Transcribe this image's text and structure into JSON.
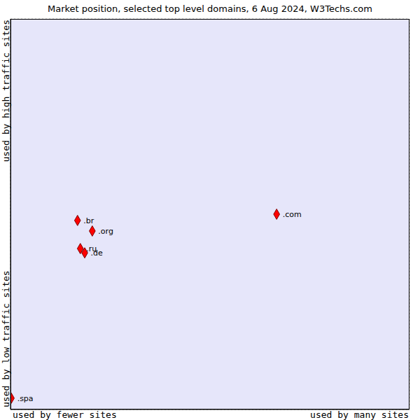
{
  "chart_data": {
    "type": "scatter",
    "title": "Market position, selected top level domains, 6 Aug 2024, W3Techs.com",
    "xlabel": [
      "used by fewer sites",
      "used by many sites"
    ],
    "ylabel": [
      "used by low traffic sites",
      "used by high traffic sites"
    ],
    "points": [
      {
        "name": ".br",
        "x": 1.68,
        "y": 4.84
      },
      {
        "name": ".org",
        "x": 2.05,
        "y": 4.57
      },
      {
        "name": ".ru",
        "x": 1.75,
        "y": 4.12
      },
      {
        "name": ".de",
        "x": 1.86,
        "y": 4.01
      },
      {
        "name": ".com",
        "x": 6.67,
        "y": 5.0
      },
      {
        "name": ".spa",
        "x": 0.02,
        "y": 0.29
      }
    ],
    "color": "#ff0000",
    "marker": "diamond",
    "xlim": [
      0,
      10
    ],
    "ylim": [
      0,
      10
    ],
    "xticks": [
      0,
      1,
      2,
      3,
      4,
      5,
      6,
      7,
      8,
      9,
      10
    ],
    "yticks": [
      0,
      1,
      2,
      3,
      4,
      5,
      6,
      7,
      8,
      9,
      10
    ],
    "grid": true,
    "tick_labels": false
  }
}
